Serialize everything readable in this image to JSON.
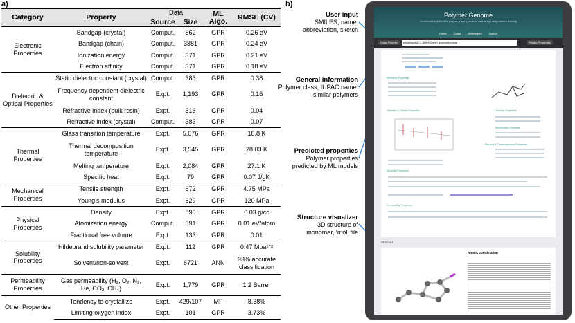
{
  "labels": {
    "a": "a)",
    "b": "b)"
  },
  "table": {
    "header": {
      "category": "Category",
      "property": "Property",
      "data": "Data",
      "source": "Source",
      "size": "Size",
      "algo": "ML Algo.",
      "rmse": "RMSE (CV)"
    },
    "groups": [
      {
        "category": "Electronic Properties",
        "rows": [
          [
            "Bandgap (crystal)",
            "Comput.",
            "562",
            "GPR",
            "0.26 eV"
          ],
          [
            "Bandgap (chain)",
            "Comput.",
            "3881",
            "GPR",
            "0.24 eV"
          ],
          [
            "Ionization energy",
            "Comput.",
            "371",
            "GPR",
            "0.21 eV"
          ],
          [
            "Electron affinity",
            "Comput.",
            "371",
            "GPR",
            "0.18 eV"
          ]
        ]
      },
      {
        "category": "Dielectric & Optical Properties",
        "rows": [
          [
            "Static dielectric constant (crystal)",
            "Comput.",
            "383",
            "GPR",
            "0.38"
          ],
          [
            "Frequency dependent dielectric constant",
            "Expt.",
            "1,193",
            "GPR",
            "0.16"
          ],
          [
            "Refractive index (bulk resin)",
            "Expt.",
            "516",
            "GPR",
            "0.04"
          ],
          [
            "Refractive index (crystal)",
            "Comput.",
            "383",
            "GPR",
            "0.07"
          ]
        ]
      },
      {
        "category": "Thermal Properties",
        "rows": [
          [
            "Glass transition temperature",
            "Expt.",
            "5,076",
            "GPR",
            "18.8 K"
          ],
          [
            "Thermal decomposition temperature",
            "Expt.",
            "3,545",
            "GPR",
            "28.03 K"
          ],
          [
            "Melting temperature",
            "Expt.",
            "2,084",
            "GPR",
            "27.1 K"
          ],
          [
            "Specific heat",
            "Expt.",
            "79",
            "GPR",
            "0.07 J/gK"
          ]
        ]
      },
      {
        "category": "Mechanical Properties",
        "rows": [
          [
            "Tensile strength",
            "Expt.",
            "672",
            "GPR",
            "4.75 MPa"
          ],
          [
            "Young’s modulus",
            "Expt.",
            "629",
            "GPR",
            "120 MPa"
          ]
        ]
      },
      {
        "category": "Physical Properties",
        "rows": [
          [
            "Density",
            "Expt.",
            "890",
            "GPR",
            "0.03 g/cc"
          ],
          [
            "Atomization energy",
            "Comput.",
            "391",
            "GPR",
            "0.01 eV/atom"
          ],
          [
            "Fractional free volume",
            "Expt.",
            "133",
            "GPR",
            "0.01"
          ]
        ]
      },
      {
        "category": "Solubility Properties",
        "rows": [
          [
            "Hildebrand solubility parameter",
            "Expt.",
            "112",
            "GPR",
            "0.47 Mpa¹ᐟ²"
          ],
          [
            "Solvent/non-solvent",
            "Expt.",
            "6721",
            "ANN",
            "93% accurate classification"
          ]
        ]
      },
      {
        "category": "Permeability Properties",
        "rows": [
          [
            "Gas permeability (H₂, O₂, N₂, He, CO₂, CH₄)",
            "Expt.",
            "1,779",
            "GPR",
            "1.2 Barrer"
          ]
        ]
      },
      {
        "category": "Other Properties",
        "rows": [
          [
            "Tendency to crystallize",
            "Expt.",
            "429/107",
            "MF",
            "8.38%"
          ],
          [
            "Limiting oxygen index",
            "Expt.",
            "101",
            "GPR",
            "3.73%"
          ]
        ]
      }
    ]
  },
  "annotations": [
    {
      "title": "User input",
      "lines": [
        "SMILES, name,",
        "abbreviation, sketch"
      ]
    },
    {
      "title": "General information",
      "lines": [
        "Polymer class, IUPAC name,",
        "similar polymers"
      ]
    },
    {
      "title": "Predicted properties",
      "lines": [
        "Polymer properties",
        "predicted by ML models"
      ]
    },
    {
      "title": "Structure visualizer",
      "lines": [
        "3D structure of",
        "monomer, ‘mol’ file"
      ]
    }
  ],
  "screen": {
    "title": "Polymer Genome",
    "subtitle": "An informatics platform for polymer property prediction and design using machine learning",
    "nav": [
      "Home",
      "Guide",
      "References",
      "Sign in"
    ],
    "draw_button": "Draw Polymer",
    "input": "poly[bicyclo[2.2.1]hept-2-ene], polynorbornene",
    "predict_button": "Predict Properties",
    "sections": [
      "Electronic Properties",
      "Dielectric & Optical Properties",
      "Thermal Properties",
      "Mechanical Properties",
      "Physical & Thermodynamic Properties",
      "Solubility Properties",
      "Permeability Properties"
    ],
    "structure": "Structure",
    "atomic": "Atomic coordination"
  }
}
